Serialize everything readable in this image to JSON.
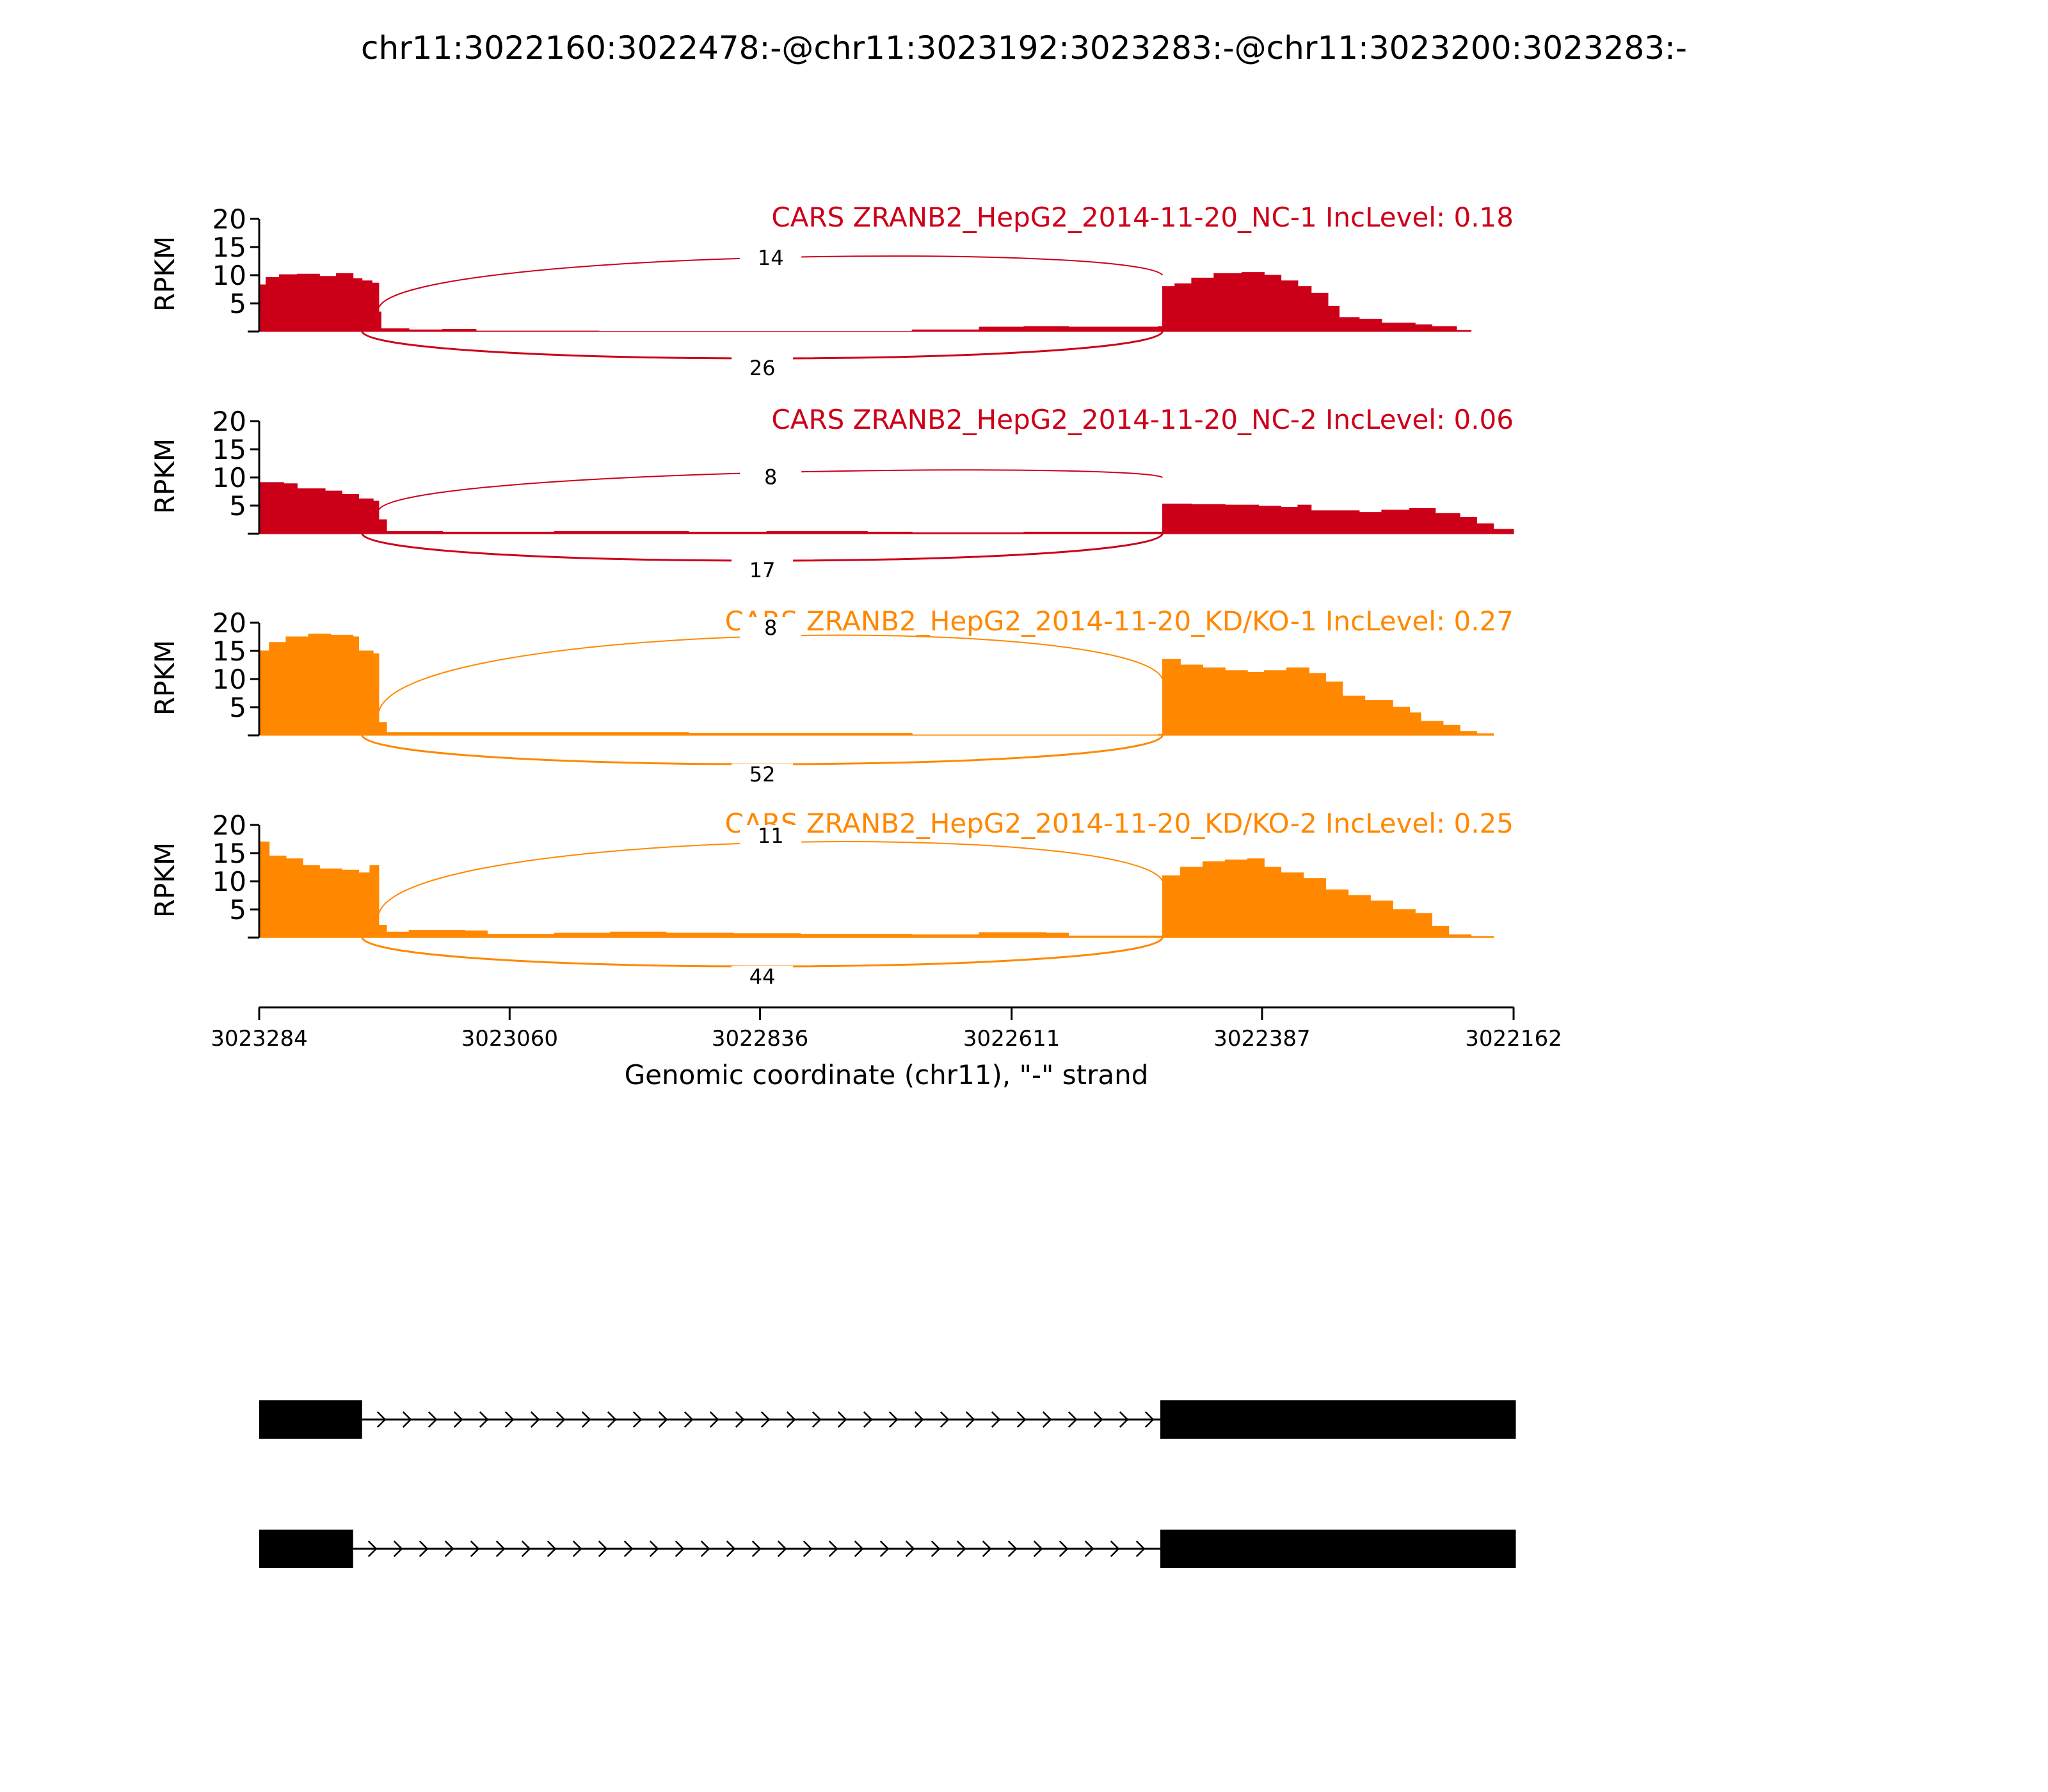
{
  "title": "chr11:3022160:3022478:-@chr11:3023192:3023283:-@chr11:3023200:3023283:-",
  "colors": {
    "nc": "#cc0018",
    "kd": "#ff8800",
    "axis": "#000000"
  },
  "chart_data": {
    "type": "area",
    "subtype": "sashimi",
    "x_axis": {
      "label": "Genomic coordinate (chr11), \"-\" strand",
      "ticks": [
        3023284,
        3023060,
        3022836,
        3022611,
        3022387,
        3022162
      ],
      "tick_labels": [
        "3023284",
        "3023060",
        "3022836",
        "3022611",
        "3022387",
        "3022162"
      ],
      "range": [
        3023284,
        3022162
      ],
      "reversed": true
    },
    "y_axis": {
      "label": "RPKM",
      "ticks": [
        5,
        10,
        15,
        20
      ],
      "tick_labels": [
        "5",
        "10",
        "15",
        "20"
      ],
      "range": [
        0,
        20
      ]
    },
    "tracks": [
      {
        "label": "CARS ZRANB2_HepG2_2014-11-20_NC-1 IncLevel: 0.18",
        "group": "nc",
        "junctions": [
          {
            "label": "14",
            "side": "top",
            "peak": 10
          },
          {
            "label": "26",
            "side": "bottom",
            "peak": 3
          }
        ],
        "coverage": [
          [
            3023284,
            8.3
          ],
          [
            3023278,
            9.6
          ],
          [
            3023266,
            10.1
          ],
          [
            3023250,
            10.2
          ],
          [
            3023230,
            9.8
          ],
          [
            3023215,
            10.3
          ],
          [
            3023200,
            9.4
          ],
          [
            3023192,
            9.0
          ],
          [
            3023183,
            8.6
          ],
          [
            3023177,
            3.5
          ],
          [
            3023175,
            0.5
          ],
          [
            3023150,
            0.3
          ],
          [
            3023120,
            0.4
          ],
          [
            3023090,
            0.1
          ],
          [
            3022980,
            0.05
          ],
          [
            3022700,
            0.3
          ],
          [
            3022640,
            0.8
          ],
          [
            3022600,
            0.9
          ],
          [
            3022560,
            0.8
          ],
          [
            3022480,
            0.9
          ],
          [
            3022476,
            8.0
          ],
          [
            3022465,
            8.5
          ],
          [
            3022450,
            9.5
          ],
          [
            3022430,
            10.3
          ],
          [
            3022405,
            10.5
          ],
          [
            3022385,
            10.0
          ],
          [
            3022370,
            9.0
          ],
          [
            3022355,
            8.0
          ],
          [
            3022343,
            6.8
          ],
          [
            3022328,
            4.5
          ],
          [
            3022318,
            2.5
          ],
          [
            3022300,
            2.2
          ],
          [
            3022280,
            1.5
          ],
          [
            3022250,
            1.2
          ],
          [
            3022235,
            0.9
          ],
          [
            3022213,
            0.2
          ],
          [
            3022200,
            0.0
          ]
        ]
      },
      {
        "label": "CARS ZRANB2_HepG2_2014-11-20_NC-2 IncLevel: 0.06",
        "group": "nc",
        "junctions": [
          {
            "label": "8",
            "side": "top",
            "peak": 7
          },
          {
            "label": "17",
            "side": "bottom",
            "peak": 3
          }
        ],
        "coverage": [
          [
            3023284,
            9.1
          ],
          [
            3023262,
            8.9
          ],
          [
            3023250,
            8.0
          ],
          [
            3023225,
            7.6
          ],
          [
            3023210,
            7.0
          ],
          [
            3023195,
            6.2
          ],
          [
            3023182,
            5.8
          ],
          [
            3023177,
            2.5
          ],
          [
            3023170,
            0.4
          ],
          [
            3023120,
            0.3
          ],
          [
            3023020,
            0.4
          ],
          [
            3022900,
            0.3
          ],
          [
            3022830,
            0.4
          ],
          [
            3022740,
            0.3
          ],
          [
            3022700,
            0.2
          ],
          [
            3022600,
            0.3
          ],
          [
            3022480,
            0.3
          ],
          [
            3022476,
            5.3
          ],
          [
            3022450,
            5.2
          ],
          [
            3022420,
            5.1
          ],
          [
            3022390,
            4.9
          ],
          [
            3022370,
            4.7
          ],
          [
            3022355,
            5.1
          ],
          [
            3022343,
            4.1
          ],
          [
            3022320,
            4.1
          ],
          [
            3022300,
            3.8
          ],
          [
            3022280,
            4.2
          ],
          [
            3022255,
            4.5
          ],
          [
            3022232,
            3.6
          ],
          [
            3022210,
            2.9
          ],
          [
            3022195,
            1.8
          ],
          [
            3022180,
            0.8
          ],
          [
            3022162,
            0.0
          ]
        ]
      },
      {
        "label": "CARS ZRANB2_HepG2_2014-11-20_KD/KO-1 IncLevel: 0.27",
        "group": "kd",
        "junctions": [
          {
            "label": "8",
            "side": "top",
            "peak": 16
          },
          {
            "label": "52",
            "side": "bottom",
            "peak": 5
          }
        ],
        "coverage": [
          [
            3023284,
            15.0
          ],
          [
            3023275,
            16.5
          ],
          [
            3023260,
            17.5
          ],
          [
            3023240,
            18.0
          ],
          [
            3023220,
            17.8
          ],
          [
            3023200,
            17.5
          ],
          [
            3023195,
            15.0
          ],
          [
            3023182,
            14.5
          ],
          [
            3023177,
            2.3
          ],
          [
            3023170,
            0.5
          ],
          [
            3022900,
            0.4
          ],
          [
            3022700,
            0.1
          ],
          [
            3022480,
            0.2
          ],
          [
            3022476,
            13.5
          ],
          [
            3022460,
            12.5
          ],
          [
            3022440,
            12.0
          ],
          [
            3022420,
            11.5
          ],
          [
            3022400,
            11.2
          ],
          [
            3022385,
            11.5
          ],
          [
            3022365,
            12.0
          ],
          [
            3022345,
            11.0
          ],
          [
            3022330,
            9.5
          ],
          [
            3022315,
            7.0
          ],
          [
            3022295,
            6.2
          ],
          [
            3022270,
            5.0
          ],
          [
            3022255,
            4.0
          ],
          [
            3022245,
            2.5
          ],
          [
            3022225,
            1.8
          ],
          [
            3022210,
            0.7
          ],
          [
            3022195,
            0.3
          ],
          [
            3022180,
            0.0
          ]
        ]
      },
      {
        "label": "CARS ZRANB2_HepG2_2014-11-20_KD/KO-2 IncLevel: 0.25",
        "group": "kd",
        "junctions": [
          {
            "label": "11",
            "side": "top",
            "peak": 15
          },
          {
            "label": "44",
            "side": "bottom",
            "peak": 5
          }
        ],
        "coverage": [
          [
            3023284,
            17.0
          ],
          [
            3023275,
            14.5
          ],
          [
            3023260,
            14.0
          ],
          [
            3023245,
            12.8
          ],
          [
            3023230,
            12.2
          ],
          [
            3023210,
            12.0
          ],
          [
            3023195,
            11.5
          ],
          [
            3023185,
            12.8
          ],
          [
            3023177,
            2.2
          ],
          [
            3023170,
            1.0
          ],
          [
            3023150,
            1.3
          ],
          [
            3023100,
            1.2
          ],
          [
            3023080,
            0.6
          ],
          [
            3023020,
            0.8
          ],
          [
            3022970,
            1.0
          ],
          [
            3022920,
            0.8
          ],
          [
            3022860,
            0.7
          ],
          [
            3022800,
            0.6
          ],
          [
            3022700,
            0.5
          ],
          [
            3022640,
            0.9
          ],
          [
            3022580,
            0.8
          ],
          [
            3022560,
            0.3
          ],
          [
            3022480,
            0.3
          ],
          [
            3022476,
            11.0
          ],
          [
            3022460,
            12.5
          ],
          [
            3022440,
            13.5
          ],
          [
            3022420,
            13.8
          ],
          [
            3022400,
            14.0
          ],
          [
            3022385,
            12.5
          ],
          [
            3022370,
            11.5
          ],
          [
            3022350,
            10.5
          ],
          [
            3022330,
            8.5
          ],
          [
            3022310,
            7.5
          ],
          [
            3022290,
            6.5
          ],
          [
            3022270,
            5.0
          ],
          [
            3022250,
            4.3
          ],
          [
            3022235,
            2.0
          ],
          [
            3022220,
            0.5
          ],
          [
            3022200,
            0.2
          ],
          [
            3022180,
            0.0
          ]
        ]
      }
    ],
    "isoforms": [
      {
        "exons": [
          [
            3023284,
            3023192
          ],
          [
            3022478,
            3022160
          ]
        ],
        "intron": [
          3023192,
          3022478
        ]
      },
      {
        "exons": [
          [
            3023284,
            3023200
          ],
          [
            3022478,
            3022160
          ]
        ],
        "intron": [
          3023200,
          3022478
        ]
      }
    ]
  }
}
